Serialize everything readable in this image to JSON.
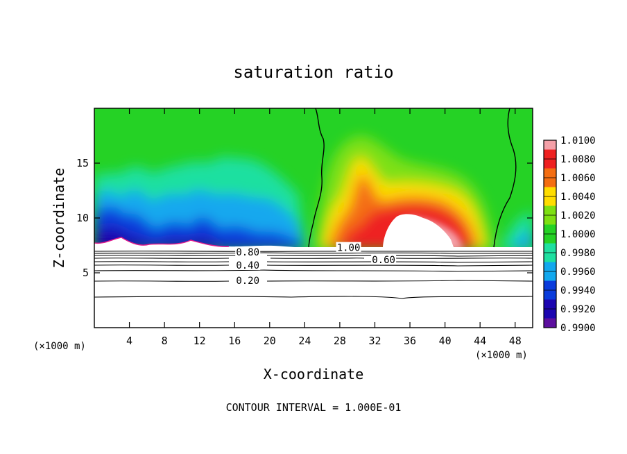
{
  "chart_data": {
    "type": "heatmap",
    "title": "saturation ratio",
    "xlabel": "X-coordinate",
    "ylabel": "Z-coordinate",
    "x_unit": "(×1000 m)",
    "xlim": [
      0,
      50
    ],
    "ylim": [
      0,
      20
    ],
    "x_ticks": [
      4,
      8,
      12,
      16,
      20,
      24,
      28,
      32,
      36,
      40,
      44,
      48
    ],
    "y_ticks": [
      5,
      10,
      15
    ],
    "colorbar": {
      "ticks": [
        "1.0100",
        "1.0080",
        "1.0060",
        "1.0040",
        "1.0020",
        "1.0000",
        "0.9980",
        "0.9960",
        "0.9940",
        "0.9920",
        "0.9900"
      ],
      "colors": [
        "#f4a0a8",
        "#ee2020",
        "#f46e12",
        "#ffdd00",
        "#7ee012",
        "#25d225",
        "#1ee0a0",
        "#12a8ee",
        "#0a3cdc",
        "#1c05b0",
        "#5c0f9e"
      ]
    },
    "contour_levels": [
      {
        "label": "1.00",
        "x": 29,
        "z": 7.3
      },
      {
        "label": "0.80",
        "x": 17.5,
        "z": 6.9
      },
      {
        "label": "0.60",
        "x": 33,
        "z": 6.2
      },
      {
        "label": "0.40",
        "x": 17.5,
        "z": 5.7
      },
      {
        "label": "0.20",
        "x": 17.5,
        "z": 4.3
      }
    ],
    "contour_interval_text": "CONTOUR INTERVAL = 1.000E-01"
  }
}
